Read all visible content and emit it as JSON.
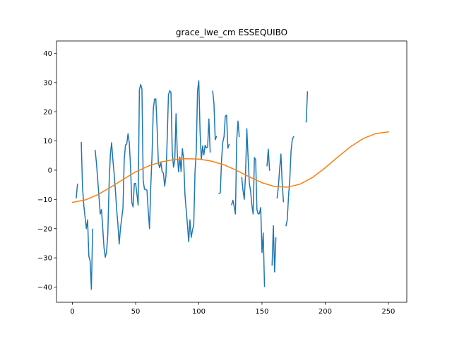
{
  "chart_data": {
    "type": "line",
    "title": "grace_lwe_cm ESSEQUIBO",
    "xlabel": "",
    "ylabel": "",
    "xlim": [
      -12.6,
      264.6
    ],
    "ylim": [
      -45.2,
      44.2
    ],
    "x_ticks": [
      0,
      50,
      100,
      150,
      200,
      250
    ],
    "y_ticks": [
      -40,
      -30,
      -20,
      -10,
      0,
      10,
      20,
      30,
      40
    ],
    "grid": false,
    "legend": "none",
    "series": [
      {
        "color": "#1f77b4",
        "segments": [
          [
            [
              3,
              -9.5
            ],
            [
              4,
              -4.8
            ]
          ],
          [
            [
              7,
              9.5
            ],
            [
              8,
              -6
            ],
            [
              9,
              -12
            ],
            [
              10,
              -16
            ],
            [
              11,
              -20
            ],
            [
              12,
              -17
            ],
            [
              13,
              -29.5
            ],
            [
              14,
              -31
            ],
            [
              15,
              -40.8
            ],
            [
              16,
              -20.2
            ]
          ],
          [
            [
              18,
              6.8
            ],
            [
              19,
              2.5
            ],
            [
              20,
              -3.2
            ],
            [
              21,
              -9
            ],
            [
              22,
              -15
            ],
            [
              23,
              -13.5
            ],
            [
              24,
              -20
            ],
            [
              25,
              -26.5
            ],
            [
              26,
              -29.8
            ],
            [
              27,
              -28
            ],
            [
              28,
              -22
            ],
            [
              29,
              -5
            ],
            [
              30,
              5.2
            ],
            [
              31,
              9.4
            ],
            [
              32,
              3.6
            ],
            [
              33,
              -1.2
            ],
            [
              34,
              -6.8
            ],
            [
              35,
              -13.5
            ],
            [
              36,
              -18.5
            ],
            [
              37,
              -25.3
            ],
            [
              38,
              -20
            ],
            [
              39,
              -16.5
            ],
            [
              40,
              -13
            ],
            [
              41,
              3.8
            ],
            [
              42,
              8.6
            ],
            [
              43,
              9
            ],
            [
              44,
              12.5
            ],
            [
              45,
              9.3
            ],
            [
              46,
              1
            ],
            [
              47,
              -11
            ],
            [
              48,
              -12.6
            ],
            [
              49,
              -4.6
            ],
            [
              50,
              -4.5
            ],
            [
              51,
              -8
            ],
            [
              52,
              -12
            ],
            [
              53,
              27.5
            ],
            [
              54,
              29.3
            ],
            [
              55,
              27.8
            ],
            [
              56,
              -3.5
            ],
            [
              57,
              -6.5
            ],
            [
              58,
              -6.5
            ],
            [
              59,
              -7
            ],
            [
              60,
              -14
            ],
            [
              61,
              -20
            ],
            [
              62,
              -5.5
            ],
            [
              63,
              5
            ],
            [
              64,
              21
            ],
            [
              65,
              24.3
            ],
            [
              66,
              24.4
            ],
            [
              67,
              14.6
            ],
            [
              68,
              2.5
            ],
            [
              69,
              0.8
            ],
            [
              70,
              2.6
            ],
            [
              71,
              -0.5
            ],
            [
              72,
              -1
            ],
            [
              73,
              -5.5
            ],
            [
              74,
              -2
            ],
            [
              75,
              10.6
            ],
            [
              76,
              25.8
            ],
            [
              77,
              27.2
            ],
            [
              78,
              26.5
            ],
            [
              79,
              6.2
            ],
            [
              80,
              1
            ],
            [
              81,
              3.4
            ],
            [
              82,
              19.3
            ],
            [
              83,
              5.5
            ],
            [
              84,
              -0.6
            ],
            [
              85,
              4.5
            ],
            [
              86,
              -0.5
            ],
            [
              87,
              7.3
            ],
            [
              88,
              4
            ],
            [
              89,
              -8
            ],
            [
              90,
              -13.5
            ],
            [
              91,
              -18.5
            ],
            [
              92,
              -24.5
            ],
            [
              93,
              -17
            ],
            [
              94,
              -23
            ],
            [
              95,
              -20.5
            ],
            [
              96,
              -18.8
            ],
            [
              97,
              -0.5
            ],
            [
              98,
              6.3
            ],
            [
              99,
              27.2
            ],
            [
              100,
              30.6
            ],
            [
              101,
              13.2
            ],
            [
              102,
              3.6
            ],
            [
              103,
              8.3
            ],
            [
              104,
              5.2
            ],
            [
              105,
              8.5
            ],
            [
              106,
              7.6
            ],
            [
              107,
              8
            ],
            [
              108,
              17.5
            ],
            [
              109,
              6.2
            ]
          ],
          [
            [
              111,
              27
            ],
            [
              112,
              22.8
            ],
            [
              113,
              10.4
            ],
            [
              114,
              11.5
            ]
          ],
          [
            [
              116,
              -8
            ],
            [
              117,
              -7.8
            ],
            [
              118,
              3.4
            ],
            [
              119,
              9.6
            ],
            [
              120,
              11.5
            ],
            [
              121,
              18.5
            ],
            [
              122,
              18.8
            ],
            [
              123,
              7.5
            ],
            [
              124,
              8.8
            ]
          ],
          [
            [
              126,
              -11.8
            ],
            [
              127,
              -10.3
            ],
            [
              128,
              -12.5
            ],
            [
              129,
              -15
            ],
            [
              130,
              10.2
            ],
            [
              131,
              16.8
            ],
            [
              132,
              11.5
            ]
          ],
          [
            [
              134,
              -2.5
            ],
            [
              135,
              -7
            ],
            [
              136,
              -10
            ],
            [
              137,
              -1.6
            ],
            [
              138,
              14.2
            ],
            [
              139,
              4.5
            ],
            [
              140,
              -4.5
            ],
            [
              141,
              -7.2
            ],
            [
              142,
              -12
            ],
            [
              143,
              -15
            ],
            [
              144,
              4.3
            ],
            [
              145,
              3.6
            ],
            [
              146,
              -13.5
            ],
            [
              147,
              -15
            ],
            [
              148,
              -14.8
            ],
            [
              149,
              -12.8
            ],
            [
              150,
              -28.2
            ],
            [
              151,
              -21.5
            ],
            [
              152,
              -39.8
            ]
          ],
          [
            [
              154,
              1.5
            ],
            [
              155,
              7.2
            ],
            [
              156,
              0
            ]
          ],
          [
            [
              158,
              -32.5
            ],
            [
              159,
              -19
            ],
            [
              160,
              -34.8
            ],
            [
              161,
              -23.2
            ]
          ],
          [
            [
              162,
              -9.5
            ],
            [
              163,
              -5.5
            ],
            [
              164,
              0.5
            ],
            [
              165,
              5.5
            ],
            [
              166,
              -4.5
            ],
            [
              167,
              -10.8
            ]
          ],
          [
            [
              169,
              -19
            ],
            [
              170,
              -17
            ],
            [
              171,
              -9
            ],
            [
              172,
              -3.2
            ],
            [
              173,
              6.5
            ],
            [
              174,
              10.5
            ],
            [
              175,
              11.5
            ]
          ],
          [
            [
              185,
              16.5
            ],
            [
              186,
              26.8
            ]
          ]
        ]
      },
      {
        "color": "#ff7f0e",
        "segments": [
          [
            [
              0,
              -11
            ],
            [
              10,
              -10.2
            ],
            [
              20,
              -8.4
            ],
            [
              30,
              -5.9
            ],
            [
              40,
              -3.2
            ],
            [
              50,
              -0.6
            ],
            [
              60,
              1.4
            ],
            [
              70,
              2.8
            ],
            [
              80,
              3.6
            ],
            [
              90,
              3.9
            ],
            [
              100,
              3.8
            ],
            [
              110,
              3.1
            ],
            [
              120,
              1.8
            ],
            [
              130,
              -0.1
            ],
            [
              140,
              -2.3
            ],
            [
              150,
              -4.3
            ],
            [
              160,
              -5.6
            ],
            [
              170,
              -5.8
            ],
            [
              180,
              -4.8
            ],
            [
              190,
              -2.5
            ],
            [
              200,
              0.8
            ],
            [
              210,
              4.5
            ],
            [
              220,
              8
            ],
            [
              230,
              10.8
            ],
            [
              240,
              12.5
            ],
            [
              250,
              13.1
            ]
          ]
        ]
      }
    ]
  }
}
